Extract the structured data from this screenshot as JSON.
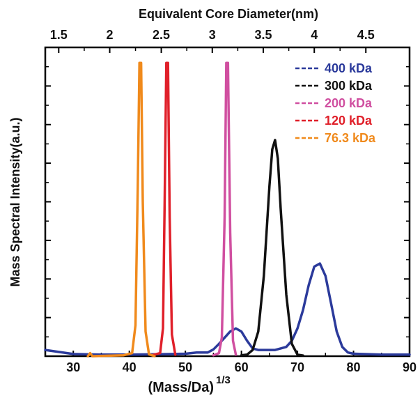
{
  "chart_data": {
    "type": "line",
    "top_axis_title": "Equivalent Core Diameter(nm)",
    "top_ticks": [
      {
        "label": "1.5",
        "x_data": 27.4
      },
      {
        "label": "2",
        "x_data": 36.5
      },
      {
        "label": "2.5",
        "x_data": 45.7
      },
      {
        "label": "3",
        "x_data": 54.8
      },
      {
        "label": "3.5",
        "x_data": 63.9
      },
      {
        "label": "4",
        "x_data": 73.0
      },
      {
        "label": "4.5",
        "x_data": 82.2
      }
    ],
    "ylabel": "Mass Spectral Intensity(a.u.)",
    "xlabel_main": "(Mass/Da)",
    "xlabel_superscript": "1/3",
    "xlim": [
      25,
      90
    ],
    "ylim": [
      0,
      1.0
    ],
    "x_ticks": [
      30,
      40,
      50,
      60,
      70,
      80,
      90
    ],
    "x_tick_labels": [
      "30",
      "40",
      "50",
      "60",
      "70",
      "80",
      "90"
    ],
    "y_tick_count": 8,
    "grid": false,
    "legend_position": "top-right",
    "series": [
      {
        "name": "400 kDa",
        "color": "#2b3a9b",
        "points": [
          [
            25,
            0.02
          ],
          [
            30,
            0.007
          ],
          [
            35,
            0.005
          ],
          [
            40,
            0.005
          ],
          [
            45,
            0.006
          ],
          [
            50,
            0.008
          ],
          [
            52,
            0.012
          ],
          [
            54,
            0.012
          ],
          [
            55,
            0.022
          ],
          [
            56,
            0.04
          ],
          [
            57,
            0.06
          ],
          [
            58,
            0.08
          ],
          [
            59,
            0.09
          ],
          [
            60,
            0.08
          ],
          [
            61,
            0.05
          ],
          [
            62,
            0.025
          ],
          [
            63,
            0.02
          ],
          [
            64,
            0.02
          ],
          [
            65,
            0.02
          ],
          [
            66,
            0.02
          ],
          [
            67,
            0.025
          ],
          [
            68,
            0.03
          ],
          [
            69,
            0.05
          ],
          [
            70,
            0.09
          ],
          [
            71,
            0.15
          ],
          [
            72,
            0.23
          ],
          [
            73,
            0.29
          ],
          [
            74,
            0.3
          ],
          [
            75,
            0.26
          ],
          [
            76,
            0.17
          ],
          [
            77,
            0.08
          ],
          [
            78,
            0.03
          ],
          [
            79,
            0.012
          ],
          [
            80,
            0.008
          ],
          [
            85,
            0.005
          ],
          [
            90,
            0.005
          ]
        ]
      },
      {
        "name": "300 kDa",
        "color": "#111111",
        "points": [
          [
            60,
            0.003
          ],
          [
            61,
            0.005
          ],
          [
            62,
            0.02
          ],
          [
            63,
            0.08
          ],
          [
            64,
            0.26
          ],
          [
            65,
            0.55
          ],
          [
            65.5,
            0.67
          ],
          [
            66,
            0.7
          ],
          [
            66.5,
            0.64
          ],
          [
            67,
            0.48
          ],
          [
            68,
            0.2
          ],
          [
            69,
            0.04
          ],
          [
            70,
            0.005
          ],
          [
            71,
            0.002
          ]
        ]
      },
      {
        "name": "200 kDa",
        "color": "#d04fa0",
        "points": [
          [
            55,
            0.003
          ],
          [
            56,
            0.01
          ],
          [
            56.5,
            0.06
          ],
          [
            57,
            0.45
          ],
          [
            57.3,
            0.95
          ],
          [
            57.6,
            0.95
          ],
          [
            58,
            0.4
          ],
          [
            58.5,
            0.05
          ],
          [
            59,
            0.005
          ]
        ]
      },
      {
        "name": "120 kDa",
        "color": "#e0202a",
        "points": [
          [
            44,
            0.003
          ],
          [
            45.5,
            0.01
          ],
          [
            46,
            0.09
          ],
          [
            46.3,
            0.5
          ],
          [
            46.6,
            0.95
          ],
          [
            46.9,
            0.95
          ],
          [
            47.2,
            0.45
          ],
          [
            47.6,
            0.07
          ],
          [
            48.2,
            0.005
          ]
        ]
      },
      {
        "name": "76.3 kDa",
        "color": "#f08a1c",
        "points": [
          [
            32.6,
            0.0
          ],
          [
            33.0,
            0.01
          ],
          [
            33.4,
            0.0
          ],
          [
            39,
            0.003
          ],
          [
            40.5,
            0.01
          ],
          [
            41.1,
            0.1
          ],
          [
            41.5,
            0.55
          ],
          [
            41.8,
            0.95
          ],
          [
            42.1,
            0.95
          ],
          [
            42.4,
            0.5
          ],
          [
            42.9,
            0.08
          ],
          [
            43.5,
            0.006
          ],
          [
            44.5,
            0.0
          ]
        ]
      }
    ]
  }
}
